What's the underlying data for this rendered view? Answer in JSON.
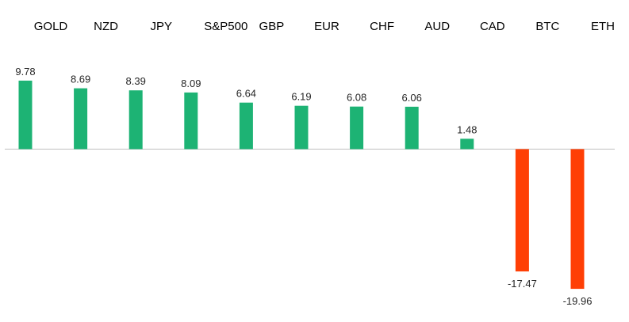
{
  "chart_data": {
    "type": "bar",
    "categories": [
      "GOLD",
      "NZD",
      "JPY",
      "S&P500",
      "GBP",
      "EUR",
      "CHF",
      "AUD",
      "CAD",
      "BTC",
      "ETH"
    ],
    "values": [
      9.78,
      8.69,
      8.39,
      8.09,
      6.64,
      6.19,
      6.08,
      6.06,
      1.48,
      -17.47,
      -19.96
    ],
    "data_labels": [
      "9.78",
      "8.69",
      "8.39",
      "8.09",
      "6.64",
      "6.19",
      "6.08",
      "6.06",
      "1.48",
      "-17.47",
      "-19.96"
    ],
    "title": "",
    "xlabel": "",
    "ylabel": "",
    "ylim": [
      -20,
      10
    ],
    "grid": false,
    "legend": "none",
    "colors": {
      "positive": "#1db374",
      "negative": "#ff3f05",
      "axis": "#bfbfbf"
    }
  }
}
